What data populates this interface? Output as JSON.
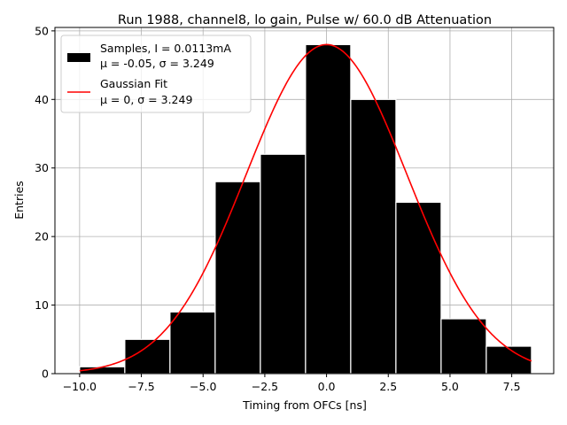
{
  "chart_data": {
    "type": "bar",
    "title": "Run 1988, channel8, lo gain, Pulse w/ 60.0 dB Attenuation",
    "xlabel": "Timing from OFCs [ns]",
    "ylabel": "Entries",
    "xlim": [
      -11.0,
      9.2
    ],
    "ylim": [
      0,
      50.5
    ],
    "xticks": [
      -10.0,
      -7.5,
      -5.0,
      -2.5,
      0.0,
      2.5,
      5.0,
      7.5
    ],
    "xtick_labels": [
      "−10.0",
      "−7.5",
      "−5.0",
      "−2.5",
      "0.0",
      "2.5",
      "5.0",
      "7.5"
    ],
    "yticks": [
      0,
      10,
      20,
      30,
      40,
      50
    ],
    "ytick_labels": [
      "0",
      "10",
      "20",
      "30",
      "40",
      "50"
    ],
    "grid": true,
    "legend_position": "top-left",
    "series": [
      {
        "kind": "histogram",
        "name": "Samples, I = 0.0113mA",
        "stats": "μ = -0.05, σ = 3.249",
        "color": "#000000",
        "bin_edges": [
          -10.0,
          -8.17,
          -6.34,
          -4.51,
          -2.68,
          -0.85,
          0.98,
          2.81,
          4.64,
          6.47,
          8.3
        ],
        "counts": [
          1,
          5,
          9,
          28,
          32,
          48,
          40,
          25,
          8,
          4
        ]
      },
      {
        "kind": "line",
        "name": "Gaussian Fit",
        "stats": "μ = 0, σ = 3.249",
        "color": "#ff0000",
        "amplitude": 48,
        "mu": 0,
        "sigma": 3.249,
        "x_range": [
          -10.0,
          8.3
        ]
      }
    ]
  }
}
